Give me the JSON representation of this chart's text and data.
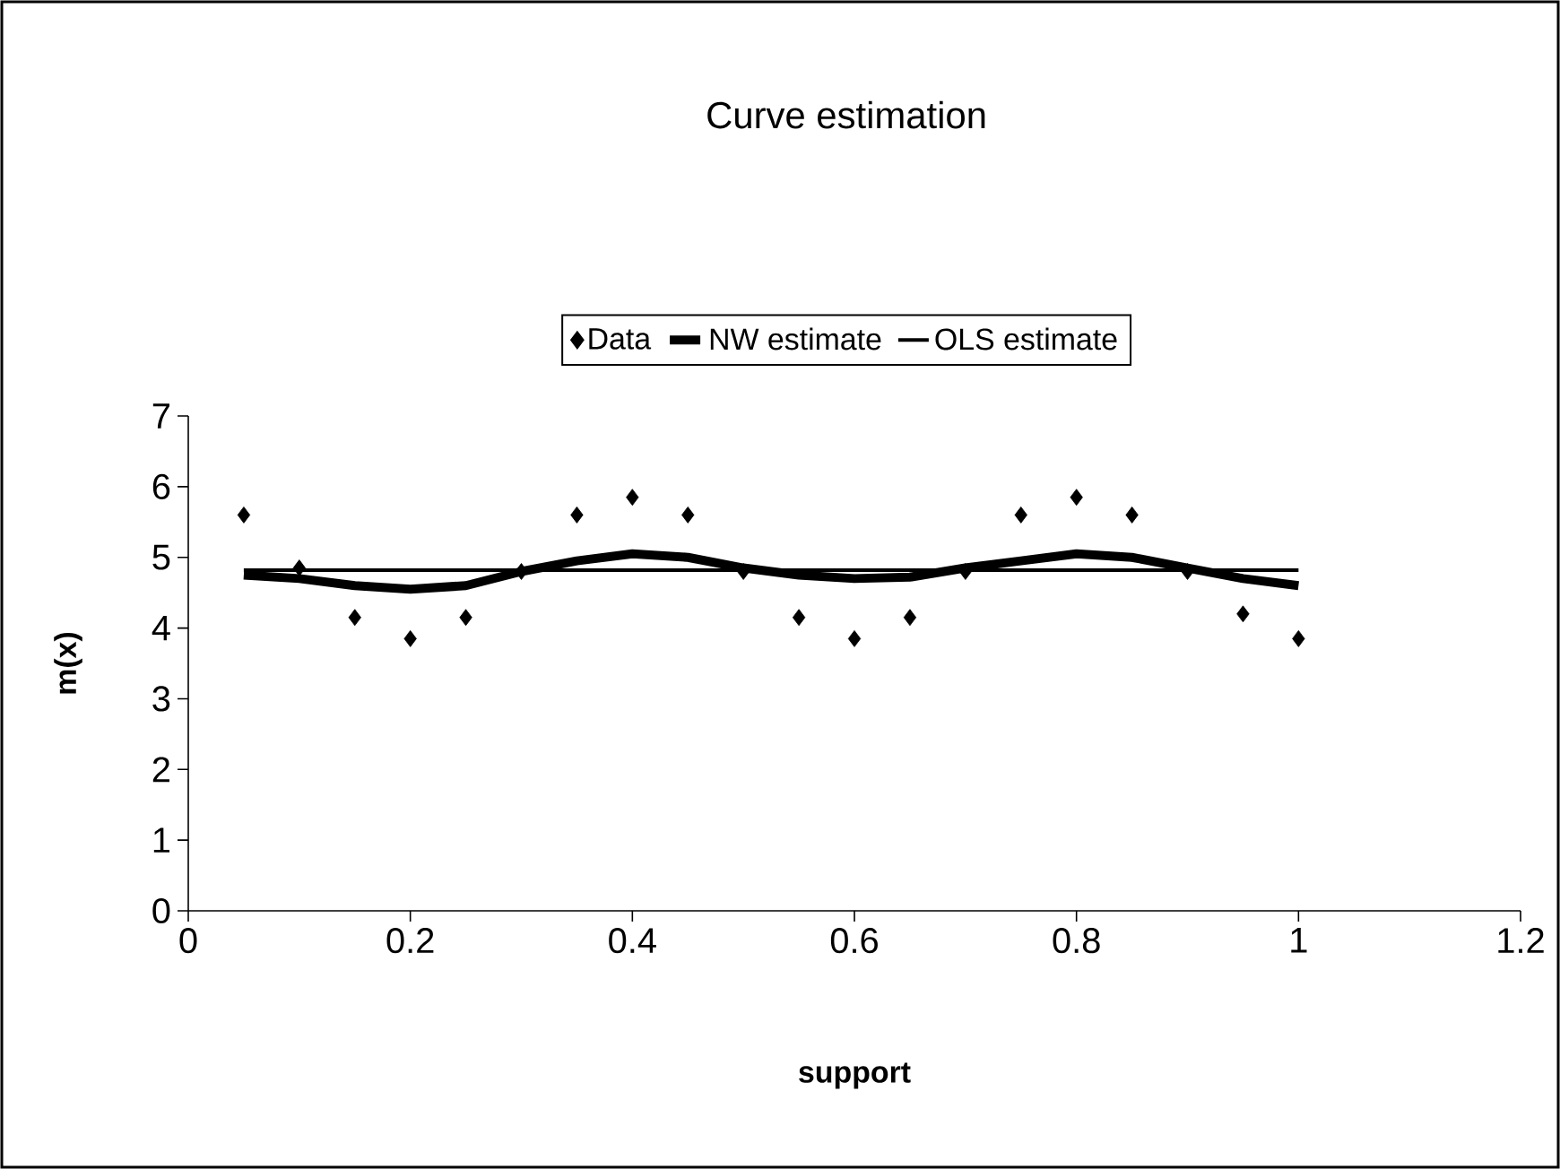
{
  "chart_data": {
    "type": "scatter",
    "title": "Curve estimation",
    "xlabel": "support",
    "ylabel": "m(x)",
    "xlim": [
      0,
      1.2
    ],
    "xticks": [
      0,
      0.2,
      0.4,
      0.6,
      0.8,
      1,
      1.2
    ],
    "ylim": [
      0,
      7
    ],
    "yticks": [
      0,
      1,
      2,
      3,
      4,
      5,
      6,
      7
    ],
    "legend": "top",
    "series": [
      {
        "name": "Data",
        "marker": "diamond",
        "color": "#000000",
        "x": [
          0.05,
          0.1,
          0.15,
          0.2,
          0.25,
          0.3,
          0.35,
          0.4,
          0.45,
          0.5,
          0.55,
          0.6,
          0.65,
          0.7,
          0.75,
          0.8,
          0.85,
          0.9,
          0.95,
          1.0
        ],
        "values": [
          5.6,
          4.85,
          4.15,
          3.85,
          4.15,
          4.8,
          5.6,
          5.85,
          5.6,
          4.8,
          4.15,
          3.85,
          4.15,
          4.8,
          5.6,
          5.85,
          5.6,
          4.8,
          4.2,
          3.85
        ]
      },
      {
        "name": "NW estimate",
        "type": "line",
        "marker": "none",
        "color": "#000000",
        "x": [
          0.05,
          0.1,
          0.15,
          0.2,
          0.25,
          0.3,
          0.35,
          0.4,
          0.45,
          0.5,
          0.55,
          0.6,
          0.65,
          0.7,
          0.75,
          0.8,
          0.85,
          0.9,
          0.95,
          1.0
        ],
        "values": [
          4.75,
          4.7,
          4.6,
          4.55,
          4.6,
          4.8,
          4.95,
          5.05,
          5.0,
          4.85,
          4.75,
          4.7,
          4.72,
          4.85,
          4.95,
          5.05,
          5.0,
          4.85,
          4.7,
          4.6
        ]
      },
      {
        "name": "OLS estimate",
        "type": "line",
        "marker": "none",
        "color": "#000000",
        "x": [
          0.05,
          1.0
        ],
        "values": [
          4.82,
          4.82
        ]
      }
    ]
  }
}
